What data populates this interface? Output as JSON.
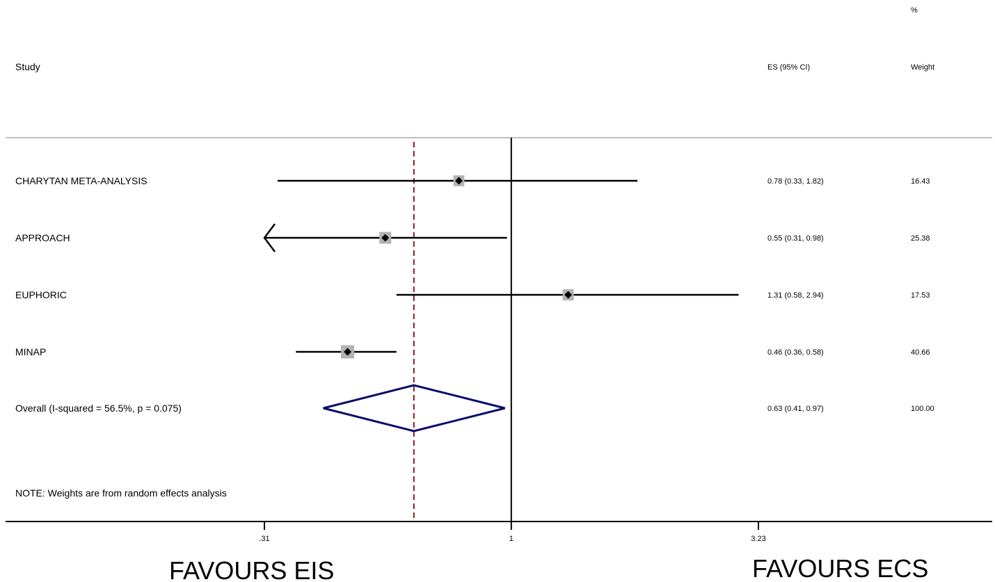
{
  "header": {
    "study_col": "Study",
    "es_col": "ES (95% CI)",
    "weight_col_top": "%",
    "weight_col": "Weight"
  },
  "note": "NOTE: Weights are from random effects analysis",
  "favours_left": "FAVOURS EIS",
  "favours_right": "FAVOURS ECS",
  "colors": {
    "ci_line": "#000000",
    "weight_box": "#b3b3b3",
    "null_line": "#000000",
    "overall_line": "#8b1a1a",
    "diamond": "#0a0a6b",
    "divider": "#bfbfbf"
  },
  "chart_data": {
    "type": "forest",
    "scale": "log",
    "xlim": [
      0.31,
      3.23
    ],
    "xticks": [
      {
        "value": 0.31,
        "label": ".31"
      },
      {
        "value": 1,
        "label": "1"
      },
      {
        "value": 3.23,
        "label": "3.23"
      }
    ],
    "null_value": 1,
    "studies": [
      {
        "name": "CHARYTAN META-ANALYSIS",
        "es": 0.78,
        "lo": 0.33,
        "hi": 1.82,
        "es_text": "0.78 (0.33, 1.82)",
        "weight": 16.43,
        "weight_text": "16.43"
      },
      {
        "name": "APPROACH",
        "es": 0.55,
        "lo": 0.31,
        "hi": 0.98,
        "es_text": "0.55 (0.31, 0.98)",
        "weight": 25.38,
        "weight_text": "25.38",
        "arrow_left": true
      },
      {
        "name": "EUPHORIC",
        "es": 1.31,
        "lo": 0.58,
        "hi": 2.94,
        "es_text": "1.31 (0.58, 2.94)",
        "weight": 17.53,
        "weight_text": "17.53"
      },
      {
        "name": "MINAP",
        "es": 0.46,
        "lo": 0.36,
        "hi": 0.58,
        "es_text": "0.46 (0.36, 0.58)",
        "weight": 40.66,
        "weight_text": "40.66"
      }
    ],
    "overall": {
      "name": "Overall  (I-squared = 56.5%, p = 0.075)",
      "es": 0.63,
      "lo": 0.41,
      "hi": 0.97,
      "es_text": "0.63 (0.41, 0.97)",
      "weight_text": "100.00"
    }
  }
}
